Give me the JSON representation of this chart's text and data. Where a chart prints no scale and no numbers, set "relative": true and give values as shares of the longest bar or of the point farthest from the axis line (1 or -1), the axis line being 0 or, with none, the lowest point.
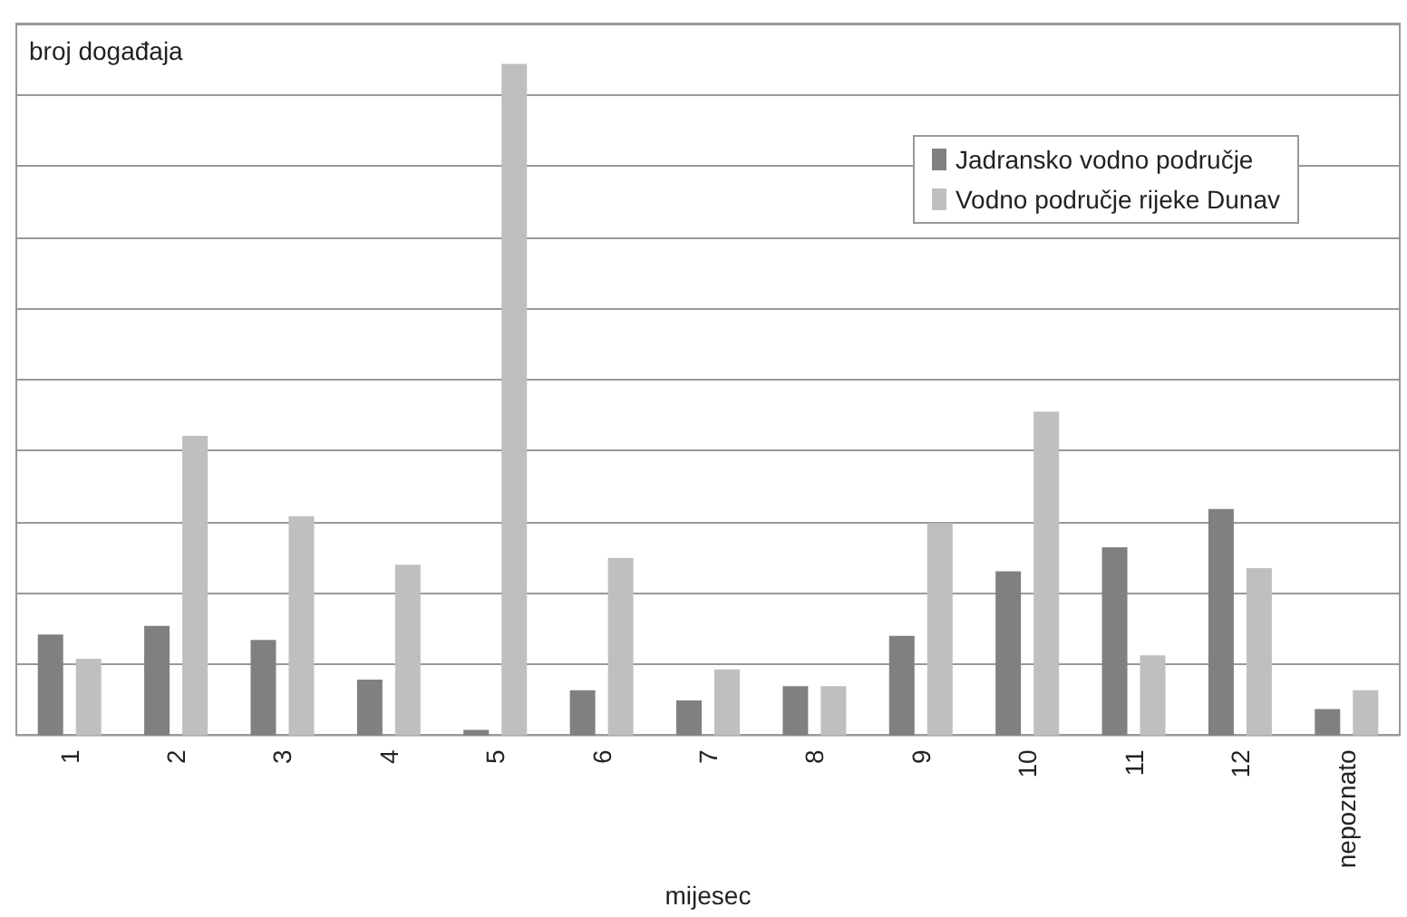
{
  "chart_data": {
    "type": "bar",
    "ylabel": "broj događaja",
    "xlabel": "mijesec",
    "relative": true,
    "grid": "y",
    "legend": "top right",
    "categories": [
      "1",
      "2",
      "3",
      "4",
      "5",
      "6",
      "7",
      "8",
      "9",
      "10",
      "11",
      "12",
      "nepoznato"
    ],
    "series": [
      {
        "name": "Jadransko vodno područje",
        "color": "#808080",
        "values": [
          0.15,
          0.163,
          0.142,
          0.083,
          0.008,
          0.067,
          0.052,
          0.073,
          0.148,
          0.244,
          0.28,
          0.337,
          0.039
        ]
      },
      {
        "name": "Vodno područje rijeke Dunav",
        "color": "#bfbfbf",
        "values": [
          0.114,
          0.446,
          0.326,
          0.254,
          1,
          0.264,
          0.098,
          0.073,
          0.316,
          0.482,
          0.119,
          0.249,
          0.067
        ]
      }
    ]
  }
}
